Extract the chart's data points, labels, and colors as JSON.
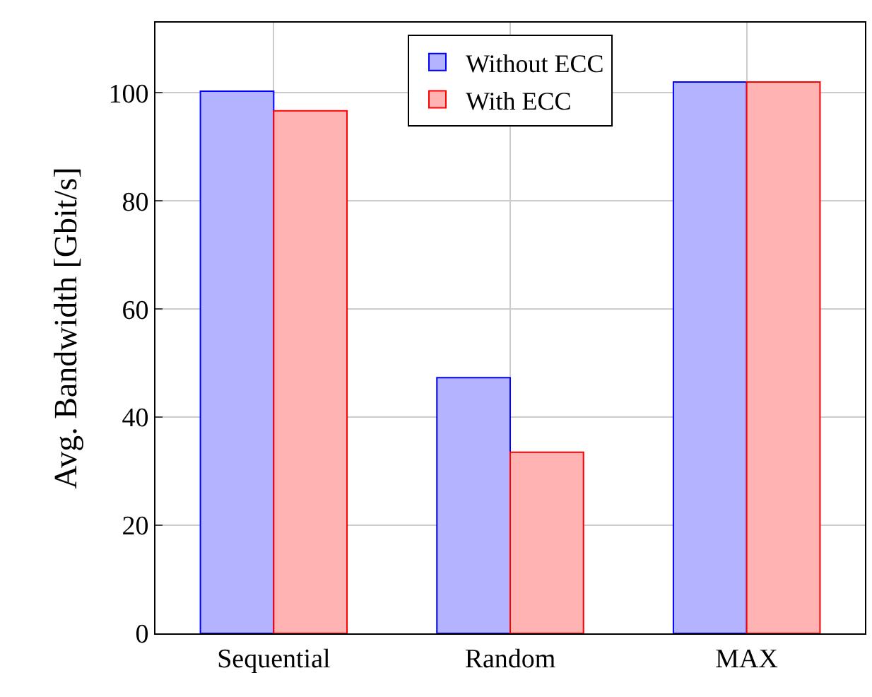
{
  "chart_data": {
    "type": "bar",
    "categories": [
      "Sequential",
      "Random",
      "MAX"
    ],
    "ylabel": "Avg. Bandwidth [Gbit/s]",
    "series": [
      {
        "name": "Without ECC",
        "color": "#b3b3ff",
        "values": [
          100.3,
          47.3,
          102
        ]
      },
      {
        "name": "With ECC",
        "color": "#ffb3b3",
        "values": [
          96.7,
          33.5,
          102
        ]
      }
    ],
    "ylim": [
      0,
      113
    ],
    "yticks": [
      0,
      20,
      40,
      60,
      80,
      100
    ],
    "grid": true,
    "legend": "top"
  }
}
